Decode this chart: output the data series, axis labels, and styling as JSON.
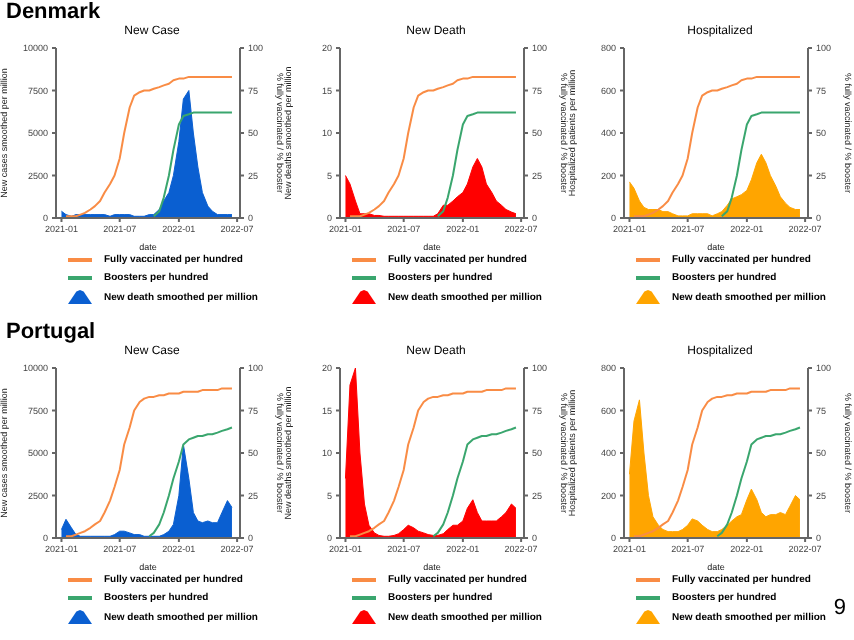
{
  "chart_data": [
    {
      "type": "area",
      "title": "New Case",
      "annotations": [
        "Denmark"
      ],
      "xlabel": "date",
      "ylabel": "New cases smoothed per million",
      "y2label": "% fully vaccinated / % booster",
      "xlim": [
        "2020-12-15",
        "2022-07-10"
      ],
      "xticks": [
        "2021-01",
        "2021-07",
        "2022-01",
        "2022-07"
      ],
      "ylim": [
        0,
        10000
      ],
      "yticks": [
        0,
        2500,
        5000,
        7500,
        10000
      ],
      "y2lim": [
        0,
        100
      ],
      "y2ticks": [
        0,
        25,
        50,
        75,
        100
      ],
      "legend": "bottom",
      "grid": false,
      "x": [
        "2021-01-01",
        "2021-01-15",
        "2021-02-01",
        "2021-02-15",
        "2021-03-01",
        "2021-03-15",
        "2021-04-01",
        "2021-04-15",
        "2021-05-01",
        "2021-05-15",
        "2021-06-01",
        "2021-06-15",
        "2021-07-01",
        "2021-07-15",
        "2021-08-01",
        "2021-08-15",
        "2021-09-01",
        "2021-09-15",
        "2021-10-01",
        "2021-10-15",
        "2021-11-01",
        "2021-11-15",
        "2021-12-01",
        "2021-12-15",
        "2022-01-01",
        "2022-01-15",
        "2022-02-01",
        "2022-02-15",
        "2022-03-01",
        "2022-03-15",
        "2022-04-01",
        "2022-04-15",
        "2022-05-01",
        "2022-05-15",
        "2022-06-01",
        "2022-06-15"
      ],
      "series": [
        {
          "name": "Fully vaccinated per hundred",
          "type": "line",
          "axis": "y2",
          "color": "#f98c45",
          "values": [
            null,
            1,
            1,
            1,
            2,
            3,
            5,
            7,
            10,
            15,
            20,
            25,
            35,
            50,
            65,
            72,
            74,
            75,
            75,
            76,
            77,
            78,
            79,
            81,
            82,
            82,
            83,
            83,
            83,
            83,
            83,
            83,
            83,
            83,
            83,
            83
          ]
        },
        {
          "name": "Boosters per hundred",
          "type": "line",
          "axis": "y2",
          "color": "#3aa66e",
          "values": [
            null,
            null,
            null,
            null,
            null,
            null,
            null,
            null,
            null,
            null,
            null,
            null,
            null,
            null,
            null,
            null,
            null,
            null,
            null,
            1,
            4,
            12,
            25,
            40,
            55,
            60,
            61,
            62,
            62,
            62,
            62,
            62,
            62,
            62,
            62,
            62
          ]
        },
        {
          "name": "New death smoothed per million",
          "type": "area",
          "axis": "y",
          "color": "#0a5fd1",
          "values": [
            400,
            200,
            100,
            200,
            200,
            200,
            200,
            200,
            200,
            200,
            100,
            200,
            200,
            200,
            200,
            100,
            100,
            100,
            200,
            200,
            500,
            1000,
            1500,
            2500,
            4500,
            7000,
            7500,
            5000,
            3000,
            1500,
            700,
            400,
            200,
            200,
            200,
            200
          ]
        }
      ]
    },
    {
      "type": "area",
      "title": "New Death",
      "xlabel": "date",
      "ylabel": "New deaths smoothed per million",
      "y2label": "% fully vaccinated / % booster",
      "xlim": [
        "2020-12-15",
        "2022-07-10"
      ],
      "xticks": [
        "2021-01",
        "2021-07",
        "2022-01",
        "2022-07"
      ],
      "ylim": [
        0,
        20
      ],
      "yticks": [
        0,
        5,
        10,
        15,
        20
      ],
      "y2lim": [
        0,
        100
      ],
      "y2ticks": [
        0,
        25,
        50,
        75,
        100
      ],
      "legend": "bottom",
      "grid": false,
      "x": [
        "2021-01-01",
        "2021-01-15",
        "2021-02-01",
        "2021-02-15",
        "2021-03-01",
        "2021-03-15",
        "2021-04-01",
        "2021-04-15",
        "2021-05-01",
        "2021-05-15",
        "2021-06-01",
        "2021-06-15",
        "2021-07-01",
        "2021-07-15",
        "2021-08-01",
        "2021-08-15",
        "2021-09-01",
        "2021-09-15",
        "2021-10-01",
        "2021-10-15",
        "2021-11-01",
        "2021-11-15",
        "2021-12-01",
        "2021-12-15",
        "2022-01-01",
        "2022-01-15",
        "2022-02-01",
        "2022-02-15",
        "2022-03-01",
        "2022-03-15",
        "2022-04-01",
        "2022-04-15",
        "2022-05-01",
        "2022-05-15",
        "2022-06-01",
        "2022-06-15"
      ],
      "series": [
        {
          "name": "Fully vaccinated per hundred",
          "type": "line",
          "axis": "y2",
          "color": "#f98c45",
          "values": [
            null,
            1,
            1,
            1,
            2,
            3,
            5,
            7,
            10,
            15,
            20,
            25,
            35,
            50,
            65,
            72,
            74,
            75,
            75,
            76,
            77,
            78,
            79,
            81,
            82,
            82,
            83,
            83,
            83,
            83,
            83,
            83,
            83,
            83,
            83,
            83
          ]
        },
        {
          "name": "Boosters per hundred",
          "type": "line",
          "axis": "y2",
          "color": "#3aa66e",
          "values": [
            null,
            null,
            null,
            null,
            null,
            null,
            null,
            null,
            null,
            null,
            null,
            null,
            null,
            null,
            null,
            null,
            null,
            null,
            null,
            1,
            4,
            12,
            25,
            40,
            55,
            60,
            61,
            62,
            62,
            62,
            62,
            62,
            62,
            62,
            62,
            62
          ]
        },
        {
          "name": "New death smoothed per million",
          "type": "area",
          "axis": "y",
          "color": "#ff0000",
          "values": [
            5,
            4,
            2,
            0.5,
            0.5,
            0.5,
            0.3,
            0.3,
            0.2,
            0.2,
            0.2,
            0.2,
            0.2,
            0.2,
            0.2,
            0.2,
            0.2,
            0.2,
            0.2,
            0.5,
            1.5,
            1.5,
            2,
            2.5,
            3,
            4,
            6,
            7,
            6,
            4,
            3,
            2,
            1.5,
            1,
            0.7,
            0.5
          ]
        }
      ]
    },
    {
      "type": "area",
      "title": "Hospitalized",
      "xlabel": "date",
      "ylabel": "Hospitalized patients per million",
      "y2label": "% fully vaccinated / % booster",
      "xlim": [
        "2020-12-15",
        "2022-07-10"
      ],
      "xticks": [
        "2021-01",
        "2021-07",
        "2022-01",
        "2022-07"
      ],
      "ylim": [
        0,
        800
      ],
      "yticks": [
        0,
        200,
        400,
        600,
        800
      ],
      "y2lim": [
        0,
        100
      ],
      "y2ticks": [
        0,
        25,
        50,
        75,
        100
      ],
      "legend": "bottom",
      "grid": false,
      "x": [
        "2021-01-01",
        "2021-01-15",
        "2021-02-01",
        "2021-02-15",
        "2021-03-01",
        "2021-03-15",
        "2021-04-01",
        "2021-04-15",
        "2021-05-01",
        "2021-05-15",
        "2021-06-01",
        "2021-06-15",
        "2021-07-01",
        "2021-07-15",
        "2021-08-01",
        "2021-08-15",
        "2021-09-01",
        "2021-09-15",
        "2021-10-01",
        "2021-10-15",
        "2021-11-01",
        "2021-11-15",
        "2021-12-01",
        "2021-12-15",
        "2022-01-01",
        "2022-01-15",
        "2022-02-01",
        "2022-02-15",
        "2022-03-01",
        "2022-03-15",
        "2022-04-01",
        "2022-04-15",
        "2022-05-01",
        "2022-05-15",
        "2022-06-01",
        "2022-06-15"
      ],
      "series": [
        {
          "name": "Fully vaccinated per hundred",
          "type": "line",
          "axis": "y2",
          "color": "#f98c45",
          "values": [
            null,
            1,
            1,
            1,
            2,
            3,
            5,
            7,
            10,
            15,
            20,
            25,
            35,
            50,
            65,
            72,
            74,
            75,
            75,
            76,
            77,
            78,
            79,
            81,
            82,
            82,
            83,
            83,
            83,
            83,
            83,
            83,
            83,
            83,
            83,
            83
          ]
        },
        {
          "name": "Boosters per hundred",
          "type": "line",
          "axis": "y2",
          "color": "#3aa66e",
          "values": [
            null,
            null,
            null,
            null,
            null,
            null,
            null,
            null,
            null,
            null,
            null,
            null,
            null,
            null,
            null,
            null,
            null,
            null,
            null,
            1,
            4,
            12,
            25,
            40,
            55,
            60,
            61,
            62,
            62,
            62,
            62,
            62,
            62,
            62,
            62,
            62
          ]
        },
        {
          "name": "New death smoothed per million",
          "type": "area",
          "axis": "y",
          "color": "#ffa500",
          "values": [
            170,
            140,
            80,
            50,
            40,
            40,
            40,
            30,
            30,
            20,
            10,
            10,
            10,
            20,
            20,
            20,
            20,
            10,
            20,
            30,
            60,
            90,
            100,
            110,
            130,
            180,
            260,
            300,
            260,
            200,
            150,
            100,
            70,
            50,
            40,
            40
          ]
        }
      ]
    },
    {
      "type": "area",
      "title": "New Case",
      "annotations": [
        "Portugal"
      ],
      "xlabel": "date",
      "ylabel": "New cases smoothed per million",
      "y2label": "% fully vaccinated / % booster",
      "xlim": [
        "2020-12-15",
        "2022-07-10"
      ],
      "xticks": [
        "2021-01",
        "2021-07",
        "2022-01",
        "2022-07"
      ],
      "ylim": [
        0,
        10000
      ],
      "yticks": [
        0,
        2500,
        5000,
        7500,
        10000
      ],
      "y2lim": [
        0,
        100
      ],
      "y2ticks": [
        0,
        25,
        50,
        75,
        100
      ],
      "legend": "bottom",
      "grid": false,
      "x": [
        "2021-01-01",
        "2021-01-15",
        "2021-02-01",
        "2021-02-15",
        "2021-03-01",
        "2021-03-15",
        "2021-04-01",
        "2021-04-15",
        "2021-05-01",
        "2021-05-15",
        "2021-06-01",
        "2021-06-15",
        "2021-07-01",
        "2021-07-15",
        "2021-08-01",
        "2021-08-15",
        "2021-09-01",
        "2021-09-15",
        "2021-10-01",
        "2021-10-15",
        "2021-11-01",
        "2021-11-15",
        "2021-12-01",
        "2021-12-15",
        "2022-01-01",
        "2022-01-15",
        "2022-02-01",
        "2022-02-15",
        "2022-03-01",
        "2022-03-15",
        "2022-04-01",
        "2022-04-15",
        "2022-05-01",
        "2022-05-15",
        "2022-06-01",
        "2022-06-15"
      ],
      "series": [
        {
          "name": "Fully vaccinated per hundred",
          "type": "line",
          "axis": "y2",
          "color": "#f98c45",
          "values": [
            null,
            1,
            1,
            2,
            3,
            4,
            6,
            8,
            10,
            15,
            22,
            30,
            40,
            55,
            65,
            75,
            80,
            82,
            83,
            83,
            84,
            84,
            85,
            85,
            85,
            86,
            86,
            86,
            86,
            87,
            87,
            87,
            87,
            88,
            88,
            88
          ]
        },
        {
          "name": "Boosters per hundred",
          "type": "line",
          "axis": "y2",
          "color": "#3aa66e",
          "values": [
            null,
            null,
            null,
            null,
            null,
            null,
            null,
            null,
            null,
            null,
            null,
            null,
            null,
            null,
            null,
            null,
            null,
            null,
            1,
            3,
            8,
            15,
            25,
            35,
            45,
            55,
            58,
            59,
            60,
            60,
            61,
            61,
            62,
            63,
            64,
            65
          ]
        },
        {
          "name": "New death smoothed per million",
          "type": "area",
          "axis": "y",
          "color": "#0a5fd1",
          "values": [
            500,
            1100,
            600,
            200,
            100,
            100,
            100,
            100,
            100,
            100,
            100,
            200,
            400,
            400,
            300,
            200,
            200,
            100,
            100,
            100,
            100,
            200,
            400,
            800,
            2500,
            5500,
            3500,
            1500,
            1000,
            900,
            1000,
            900,
            900,
            1500,
            2200,
            1800
          ]
        }
      ]
    },
    {
      "type": "area",
      "title": "New Death",
      "xlabel": "date",
      "ylabel": "New deaths smoothed per million",
      "y2label": "% fully vaccinated / % booster",
      "xlim": [
        "2020-12-15",
        "2022-07-10"
      ],
      "xticks": [
        "2021-01",
        "2021-07",
        "2022-01",
        "2022-07"
      ],
      "ylim": [
        0,
        20
      ],
      "yticks": [
        0,
        5,
        10,
        15,
        20
      ],
      "y2lim": [
        0,
        100
      ],
      "y2ticks": [
        0,
        25,
        50,
        75,
        100
      ],
      "legend": "bottom",
      "grid": false,
      "x": [
        "2021-01-01",
        "2021-01-15",
        "2021-02-01",
        "2021-02-15",
        "2021-03-01",
        "2021-03-15",
        "2021-04-01",
        "2021-04-15",
        "2021-05-01",
        "2021-05-15",
        "2021-06-01",
        "2021-06-15",
        "2021-07-01",
        "2021-07-15",
        "2021-08-01",
        "2021-08-15",
        "2021-09-01",
        "2021-09-15",
        "2021-10-01",
        "2021-10-15",
        "2021-11-01",
        "2021-11-15",
        "2021-12-01",
        "2021-12-15",
        "2022-01-01",
        "2022-01-15",
        "2022-02-01",
        "2022-02-15",
        "2022-03-01",
        "2022-03-15",
        "2022-04-01",
        "2022-04-15",
        "2022-05-01",
        "2022-05-15",
        "2022-06-01",
        "2022-06-15"
      ],
      "series": [
        {
          "name": "Fully vaccinated per hundred",
          "type": "line",
          "axis": "y2",
          "color": "#f98c45",
          "values": [
            null,
            1,
            1,
            2,
            3,
            4,
            6,
            8,
            10,
            15,
            22,
            30,
            40,
            55,
            65,
            75,
            80,
            82,
            83,
            83,
            84,
            84,
            85,
            85,
            85,
            86,
            86,
            86,
            86,
            87,
            87,
            87,
            87,
            88,
            88,
            88
          ]
        },
        {
          "name": "Boosters per hundred",
          "type": "line",
          "axis": "y2",
          "color": "#3aa66e",
          "values": [
            null,
            null,
            null,
            null,
            null,
            null,
            null,
            null,
            null,
            null,
            null,
            null,
            null,
            null,
            null,
            null,
            null,
            null,
            1,
            3,
            8,
            15,
            25,
            35,
            45,
            55,
            58,
            59,
            60,
            60,
            61,
            61,
            62,
            63,
            64,
            65
          ]
        },
        {
          "name": "New death smoothed per million",
          "type": "area",
          "axis": "y",
          "color": "#ff0000",
          "values": [
            7,
            18,
            20,
            10,
            4,
            1.5,
            0.6,
            0.3,
            0.2,
            0.2,
            0.3,
            0.5,
            1,
            1.5,
            1.2,
            0.8,
            0.6,
            0.4,
            0.3,
            0.3,
            0.5,
            1,
            1.5,
            1.5,
            2,
            3.5,
            4.5,
            3,
            2,
            2,
            2,
            2,
            2.5,
            3,
            4,
            3.5
          ]
        }
      ]
    },
    {
      "type": "area",
      "title": "Hospitalized",
      "annotations": [
        "9"
      ],
      "xlabel": "date",
      "ylabel": "Hospitalized patients per million",
      "y2label": "% fully vaccinated / % booster",
      "xlim": [
        "2020-12-15",
        "2022-07-10"
      ],
      "xticks": [
        "2021-01",
        "2021-07",
        "2022-01",
        "2022-07"
      ],
      "ylim": [
        0,
        800
      ],
      "yticks": [
        0,
        200,
        400,
        600,
        800
      ],
      "y2lim": [
        0,
        100
      ],
      "y2ticks": [
        0,
        25,
        50,
        75,
        100
      ],
      "legend": "bottom",
      "grid": false,
      "x": [
        "2021-01-01",
        "2021-01-15",
        "2021-02-01",
        "2021-02-15",
        "2021-03-01",
        "2021-03-15",
        "2021-04-01",
        "2021-04-15",
        "2021-05-01",
        "2021-05-15",
        "2021-06-01",
        "2021-06-15",
        "2021-07-01",
        "2021-07-15",
        "2021-08-01",
        "2021-08-15",
        "2021-09-01",
        "2021-09-15",
        "2021-10-01",
        "2021-10-15",
        "2021-11-01",
        "2021-11-15",
        "2021-12-01",
        "2021-12-15",
        "2022-01-01",
        "2022-01-15",
        "2022-02-01",
        "2022-02-15",
        "2022-03-01",
        "2022-03-15",
        "2022-04-01",
        "2022-04-15",
        "2022-05-01",
        "2022-05-15",
        "2022-06-01",
        "2022-06-15"
      ],
      "series": [
        {
          "name": "Fully vaccinated per hundred",
          "type": "line",
          "axis": "y2",
          "color": "#f98c45",
          "values": [
            null,
            1,
            1,
            2,
            3,
            4,
            6,
            8,
            10,
            15,
            22,
            30,
            40,
            55,
            65,
            75,
            80,
            82,
            83,
            83,
            84,
            84,
            85,
            85,
            85,
            86,
            86,
            86,
            86,
            87,
            87,
            87,
            87,
            88,
            88,
            88
          ]
        },
        {
          "name": "Boosters per hundred",
          "type": "line",
          "axis": "y2",
          "color": "#3aa66e",
          "values": [
            null,
            null,
            null,
            null,
            null,
            null,
            null,
            null,
            null,
            null,
            null,
            null,
            null,
            null,
            null,
            null,
            null,
            null,
            1,
            3,
            8,
            15,
            25,
            35,
            45,
            55,
            58,
            59,
            60,
            60,
            61,
            61,
            62,
            63,
            64,
            65
          ]
        },
        {
          "name": "New death smoothed per million",
          "type": "area",
          "axis": "y",
          "color": "#ffa500",
          "values": [
            300,
            550,
            650,
            400,
            200,
            100,
            60,
            40,
            30,
            30,
            30,
            40,
            60,
            90,
            80,
            60,
            40,
            30,
            30,
            40,
            60,
            80,
            100,
            110,
            180,
            230,
            180,
            120,
            100,
            110,
            110,
            120,
            110,
            150,
            200,
            180
          ]
        }
      ]
    }
  ]
}
